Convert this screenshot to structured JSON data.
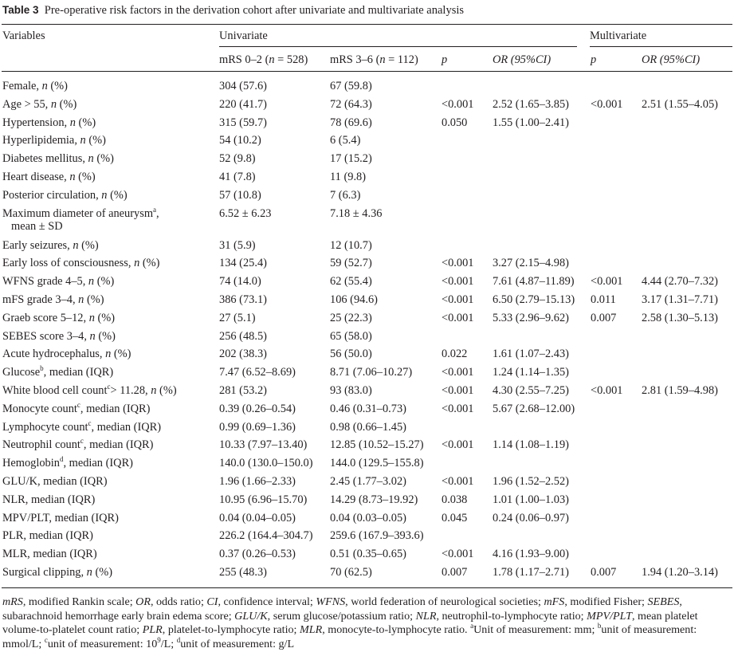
{
  "caption": {
    "label": "Table 3",
    "text": "Pre-operative risk factors in the derivation cohort after univariate and multivariate analysis"
  },
  "headers": {
    "variables": "Variables",
    "univariate": "Univariate",
    "multivariate": "Multivariate",
    "mrs_low": "mRS 0–2 (",
    "mrs_low_n": "n",
    "mrs_low_val": " = 528)",
    "mrs_high": "mRS 3–6 (",
    "mrs_high_n": "n",
    "mrs_high_val": " = 112)",
    "p": "p",
    "or_ci": "OR (95%CI)",
    "p_multi": "p",
    "or_ci_multi": "OR (95%CI)"
  },
  "rows": [
    {
      "var": "Female, ",
      "vi": "n",
      "vs": " (%)",
      "sup": "",
      "low": "304 (57.6)",
      "high": "67 (59.8)",
      "p": "",
      "or": "",
      "mp": "",
      "mor": ""
    },
    {
      "var": "Age > 55, ",
      "vi": "n",
      "vs": " (%)",
      "sup": "",
      "low": "220 (41.7)",
      "high": "72 (64.3)",
      "p": "<0.001",
      "or": "2.52 (1.65–3.85)",
      "mp": "<0.001",
      "mor": "2.51 (1.55–4.05)"
    },
    {
      "var": "Hypertension, ",
      "vi": "n",
      "vs": " (%)",
      "sup": "",
      "low": "315 (59.7)",
      "high": "78 (69.6)",
      "p": "0.050",
      "or": "1.55 (1.00–2.41)",
      "mp": "",
      "mor": ""
    },
    {
      "var": "Hyperlipidemia, ",
      "vi": "n",
      "vs": " (%)",
      "sup": "",
      "low": "54 (10.2)",
      "high": "6 (5.4)",
      "p": "",
      "or": "",
      "mp": "",
      "mor": ""
    },
    {
      "var": "Diabetes mellitus, ",
      "vi": "n",
      "vs": " (%)",
      "sup": "",
      "low": "52 (9.8)",
      "high": "17 (15.2)",
      "p": "",
      "or": "",
      "mp": "",
      "mor": ""
    },
    {
      "var": "Heart disease, ",
      "vi": "n",
      "vs": " (%)",
      "sup": "",
      "low": "41 (7.8)",
      "high": "11 (9.8)",
      "p": "",
      "or": "",
      "mp": "",
      "mor": ""
    },
    {
      "var": "Posterior circulation, ",
      "vi": "n",
      "vs": " (%)",
      "sup": "",
      "low": "57 (10.8)",
      "high": "7 (6.3)",
      "p": "",
      "or": "",
      "mp": "",
      "mor": ""
    },
    {
      "var": "Maximum diameter of aneurysm",
      "vi": "",
      "vs": ",",
      "sup": "a",
      "line2": "mean ± SD",
      "low": "6.52 ± 6.23",
      "high": "7.18 ± 4.36",
      "p": "",
      "or": "",
      "mp": "",
      "mor": ""
    },
    {
      "var": "Early seizures, ",
      "vi": "n",
      "vs": " (%)",
      "sup": "",
      "low": "31 (5.9)",
      "high": "12 (10.7)",
      "p": "",
      "or": "",
      "mp": "",
      "mor": ""
    },
    {
      "var": "Early loss of consciousness, ",
      "vi": "n",
      "vs": " (%)",
      "sup": "",
      "low": "134 (25.4)",
      "high": "59 (52.7)",
      "p": "<0.001",
      "or": "3.27 (2.15–4.98)",
      "mp": "",
      "mor": ""
    },
    {
      "var": "WFNS grade 4–5, ",
      "vi": "n",
      "vs": " (%)",
      "sup": "",
      "low": "74 (14.0)",
      "high": "62 (55.4)",
      "p": "<0.001",
      "or": "7.61 (4.87–11.89)",
      "mp": "<0.001",
      "mor": "4.44 (2.70–7.32)"
    },
    {
      "var": "mFS grade 3–4, ",
      "vi": "n",
      "vs": " (%)",
      "sup": "",
      "low": "386 (73.1)",
      "high": "106 (94.6)",
      "p": "<0.001",
      "or": "6.50 (2.79–15.13)",
      "mp": "0.011",
      "mor": "3.17 (1.31–7.71)"
    },
    {
      "var": "Graeb score 5–12, ",
      "vi": "n",
      "vs": " (%)",
      "sup": "",
      "low": "27 (5.1)",
      "high": "25 (22.3)",
      "p": "<0.001",
      "or": "5.33 (2.96–9.62)",
      "mp": "0.007",
      "mor": "2.58 (1.30–5.13)"
    },
    {
      "var": "SEBES score 3–4, ",
      "vi": "n",
      "vs": " (%)",
      "sup": "",
      "low": "256 (48.5)",
      "high": "65 (58.0)",
      "p": "",
      "or": "",
      "mp": "",
      "mor": ""
    },
    {
      "var": "Acute hydrocephalus, ",
      "vi": "n",
      "vs": " (%)",
      "sup": "",
      "low": "202 (38.3)",
      "high": "56 (50.0)",
      "p": "0.022",
      "or": "1.61 (1.07–2.43)",
      "mp": "",
      "mor": ""
    },
    {
      "var": "Glucose",
      "vi": "",
      "vs": ", median (IQR)",
      "sup": "b",
      "low": "7.47 (6.52–8.69)",
      "high": "8.71 (7.06–10.27)",
      "p": "<0.001",
      "or": "1.24 (1.14–1.35)",
      "mp": "",
      "mor": ""
    },
    {
      "var": "White blood cell count",
      "vi": "n",
      "vs": " (%)",
      "sup": "c",
      "mid": "> 11.28, ",
      "low": "281 (53.2)",
      "high": "93 (83.0)",
      "p": "<0.001",
      "or": "4.30 (2.55–7.25)",
      "mp": "<0.001",
      "mor": "2.81 (1.59–4.98)"
    },
    {
      "var": "Monocyte count",
      "vi": "",
      "vs": ", median (IQR)",
      "sup": "c",
      "low": "0.39 (0.26–0.54)",
      "high": "0.46 (0.31–0.73)",
      "p": "<0.001",
      "or": "5.67 (2.68–12.00)",
      "mp": "",
      "mor": ""
    },
    {
      "var": "Lymphocyte count",
      "vi": "",
      "vs": ", median (IQR)",
      "sup": "c",
      "low": "0.99 (0.69–1.36)",
      "high": "0.98 (0.66–1.45)",
      "p": "",
      "or": "",
      "mp": "",
      "mor": ""
    },
    {
      "var": "Neutrophil count",
      "vi": "",
      "vs": ", median (IQR)",
      "sup": "c",
      "low": "10.33 (7.97–13.40)",
      "high": "12.85 (10.52–15.27)",
      "p": "<0.001",
      "or": "1.14 (1.08–1.19)",
      "mp": "",
      "mor": ""
    },
    {
      "var": "Hemoglobin",
      "vi": "",
      "vs": ", median (IQR)",
      "sup": "d",
      "low": "140.0 (130.0–150.0)",
      "high": "144.0 (129.5–155.8)",
      "p": "",
      "or": "",
      "mp": "",
      "mor": ""
    },
    {
      "var": "GLU/K, median (IQR)",
      "vi": "",
      "vs": "",
      "sup": "",
      "low": "1.96 (1.66–2.33)",
      "high": "2.45 (1.77–3.02)",
      "p": "<0.001",
      "or": "1.96 (1.52–2.52)",
      "mp": "",
      "mor": ""
    },
    {
      "var": "NLR, median (IQR)",
      "vi": "",
      "vs": "",
      "sup": "",
      "low": "10.95 (6.96–15.70)",
      "high": "14.29 (8.73–19.92)",
      "p": "0.038",
      "or": "1.01 (1.00–1.03)",
      "mp": "",
      "mor": ""
    },
    {
      "var": "MPV/PLT, median (IQR)",
      "vi": "",
      "vs": "",
      "sup": "",
      "low": "0.04 (0.04–0.05)",
      "high": "0.04 (0.03–0.05)",
      "p": "0.045",
      "or": "0.24 (0.06–0.97)",
      "mp": "",
      "mor": ""
    },
    {
      "var": "PLR, median (IQR)",
      "vi": "",
      "vs": "",
      "sup": "",
      "low": "226.2 (164.4–304.7)",
      "high": "259.6 (167.9–393.6)",
      "p": "",
      "or": "",
      "mp": "",
      "mor": ""
    },
    {
      "var": "MLR, median (IQR)",
      "vi": "",
      "vs": "",
      "sup": "",
      "low": "0.37 (0.26–0.53)",
      "high": "0.51 (0.35–0.65)",
      "p": "<0.001",
      "or": "4.16 (1.93–9.00)",
      "mp": "",
      "mor": ""
    },
    {
      "var": "Surgical clipping, ",
      "vi": "n",
      "vs": " (%)",
      "sup": "",
      "low": "255 (48.3)",
      "high": "70 (62.5)",
      "p": "0.007",
      "or": "1.78 (1.17–2.71)",
      "mp": "0.007",
      "mor": "1.94 (1.20–3.14)"
    }
  ],
  "footnote": {
    "abbr": [
      [
        "mRS",
        ", modified Rankin scale; "
      ],
      [
        "OR",
        ", odds ratio; "
      ],
      [
        "CI",
        ", confidence interval; "
      ],
      [
        "WFNS",
        ", world federation of neurological societies; "
      ],
      [
        "mFS",
        ", modified Fisher; "
      ],
      [
        "SEBES",
        ", subarachnoid hemorrhage early brain edema score; "
      ],
      [
        "GLU/K",
        ", serum glucose/potassium ratio; "
      ],
      [
        "NLR",
        ", neutrophil-to-lymphocyte ratio; "
      ],
      [
        "MPV/PLT",
        ", mean platelet volume-to-platelet count ratio; "
      ],
      [
        "PLR",
        ", platelet-to-lymphocyte ratio; "
      ],
      [
        "MLR",
        ", monocyte-to-lymphocyte ratio. "
      ]
    ],
    "units": [
      [
        "a",
        "Unit of measurement: mm; "
      ],
      [
        "b",
        "unit of measurement: mmol/L; "
      ],
      [
        "c",
        "unit of measurement: 10"
      ],
      [
        "9",
        "/L; "
      ],
      [
        "d",
        "unit of measurement: g/L"
      ]
    ]
  }
}
